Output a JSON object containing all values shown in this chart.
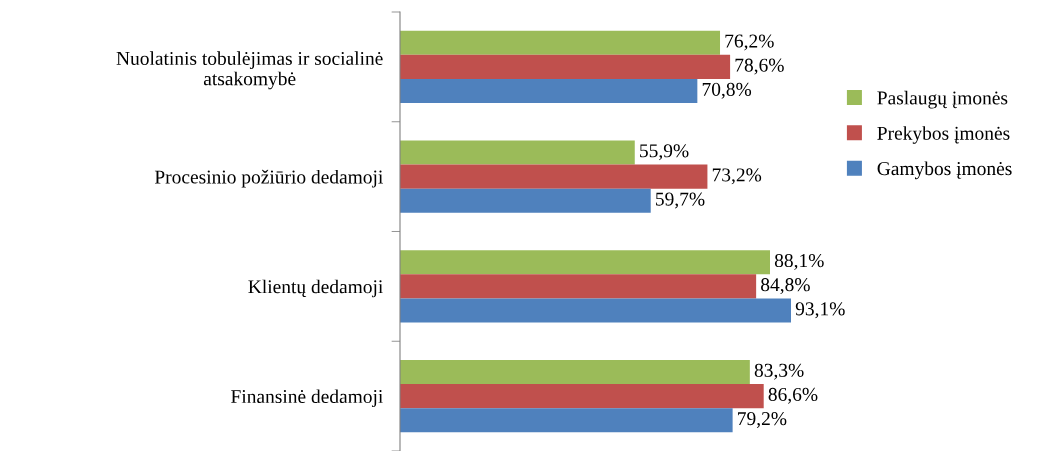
{
  "chart_data": {
    "type": "bar",
    "orientation": "horizontal",
    "tick_labels": "y",
    "legend": "right",
    "grid": false,
    "categories": [
      "Nuolatinis tobulėjimas ir socialinė\natsakomybė",
      "Procesinio požiūrio dedamoji",
      "Klientų dedamoji",
      "Finansinė dedamoji"
    ],
    "series": [
      {
        "name": "Paslaugų įmonės",
        "color": "#9bbb59",
        "values": [
          76.2,
          55.9,
          88.1,
          83.3
        ],
        "value_labels": [
          "76,2%",
          "55,9%",
          "88,1%",
          "83,3%"
        ]
      },
      {
        "name": "Prekybos įmonės",
        "color": "#c0504d",
        "values": [
          78.6,
          73.2,
          84.8,
          86.6
        ],
        "value_labels": [
          "78,6%",
          "73,2%",
          "84,8%",
          "86,6%"
        ]
      },
      {
        "name": "Gamybos įmonės",
        "color": "#4f81bd",
        "values": [
          70.8,
          59.7,
          93.1,
          79.2
        ],
        "value_labels": [
          "70,8%",
          "59,7%",
          "93,1%",
          "79,2%"
        ]
      }
    ]
  }
}
